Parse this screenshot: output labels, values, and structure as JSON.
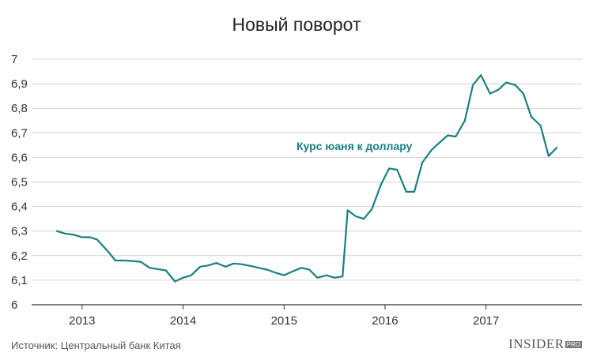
{
  "title": "Новый поворот",
  "source": "Источник: Центральный банк Китая",
  "brand": {
    "name": "INSIDER",
    "suffix": "PRO"
  },
  "colors": {
    "line": "#1a7f80",
    "grid": "#d4d4d4",
    "axis": "#333333"
  },
  "chart_data": {
    "type": "line",
    "title": "Новый поворот",
    "xlabel": "",
    "ylabel": "",
    "ylim": [
      6,
      7
    ],
    "xlim": [
      2012.5,
      2017.95
    ],
    "grid": true,
    "y_ticks": [
      6,
      6.1,
      6.2,
      6.3,
      6.4,
      6.5,
      6.6,
      6.7,
      6.8,
      6.9,
      7
    ],
    "y_tick_labels": [
      "6",
      "6,1",
      "6,2",
      "6,3",
      "6,4",
      "6,5",
      "6,6",
      "6,7",
      "6,8",
      "6,9",
      "7"
    ],
    "x_ticks": [
      2013,
      2014,
      2015,
      2016,
      2017
    ],
    "x_tick_labels": [
      "2013",
      "2014",
      "2015",
      "2016",
      "2017"
    ],
    "annotation": "Курс юаня к доллару",
    "series": [
      {
        "points": [
          [
            2012.75,
            6.3
          ],
          [
            2012.83,
            6.29
          ],
          [
            2012.92,
            6.285
          ],
          [
            2013.0,
            6.275
          ],
          [
            2013.08,
            6.275
          ],
          [
            2013.15,
            6.265
          ],
          [
            2013.25,
            6.22
          ],
          [
            2013.33,
            6.18
          ],
          [
            2013.42,
            6.18
          ],
          [
            2013.5,
            6.178
          ],
          [
            2013.58,
            6.175
          ],
          [
            2013.67,
            6.15
          ],
          [
            2013.75,
            6.145
          ],
          [
            2013.83,
            6.14
          ],
          [
            2013.92,
            6.095
          ],
          [
            2014.0,
            6.11
          ],
          [
            2014.08,
            6.12
          ],
          [
            2014.17,
            6.155
          ],
          [
            2014.25,
            6.16
          ],
          [
            2014.33,
            6.17
          ],
          [
            2014.42,
            6.155
          ],
          [
            2014.5,
            6.168
          ],
          [
            2014.58,
            6.165
          ],
          [
            2014.67,
            6.158
          ],
          [
            2014.75,
            6.15
          ],
          [
            2014.83,
            6.143
          ],
          [
            2014.92,
            6.13
          ],
          [
            2015.0,
            6.12
          ],
          [
            2015.08,
            6.135
          ],
          [
            2015.17,
            6.15
          ],
          [
            2015.25,
            6.143
          ],
          [
            2015.33,
            6.11
          ],
          [
            2015.42,
            6.12
          ],
          [
            2015.5,
            6.11
          ],
          [
            2015.58,
            6.115
          ],
          [
            2015.63,
            6.385
          ],
          [
            2015.71,
            6.36
          ],
          [
            2015.79,
            6.35
          ],
          [
            2015.87,
            6.39
          ],
          [
            2015.96,
            6.49
          ],
          [
            2016.04,
            6.555
          ],
          [
            2016.12,
            6.55
          ],
          [
            2016.21,
            6.46
          ],
          [
            2016.29,
            6.46
          ],
          [
            2016.37,
            6.58
          ],
          [
            2016.46,
            6.63
          ],
          [
            2016.54,
            6.66
          ],
          [
            2016.62,
            6.69
          ],
          [
            2016.7,
            6.685
          ],
          [
            2016.79,
            6.75
          ],
          [
            2016.87,
            6.895
          ],
          [
            2016.95,
            6.935
          ],
          [
            2017.04,
            6.86
          ],
          [
            2017.12,
            6.875
          ],
          [
            2017.2,
            6.905
          ],
          [
            2017.29,
            6.895
          ],
          [
            2017.37,
            6.86
          ],
          [
            2017.45,
            6.765
          ],
          [
            2017.54,
            6.73
          ],
          [
            2017.62,
            6.605
          ],
          [
            2017.7,
            6.64
          ]
        ]
      }
    ]
  }
}
